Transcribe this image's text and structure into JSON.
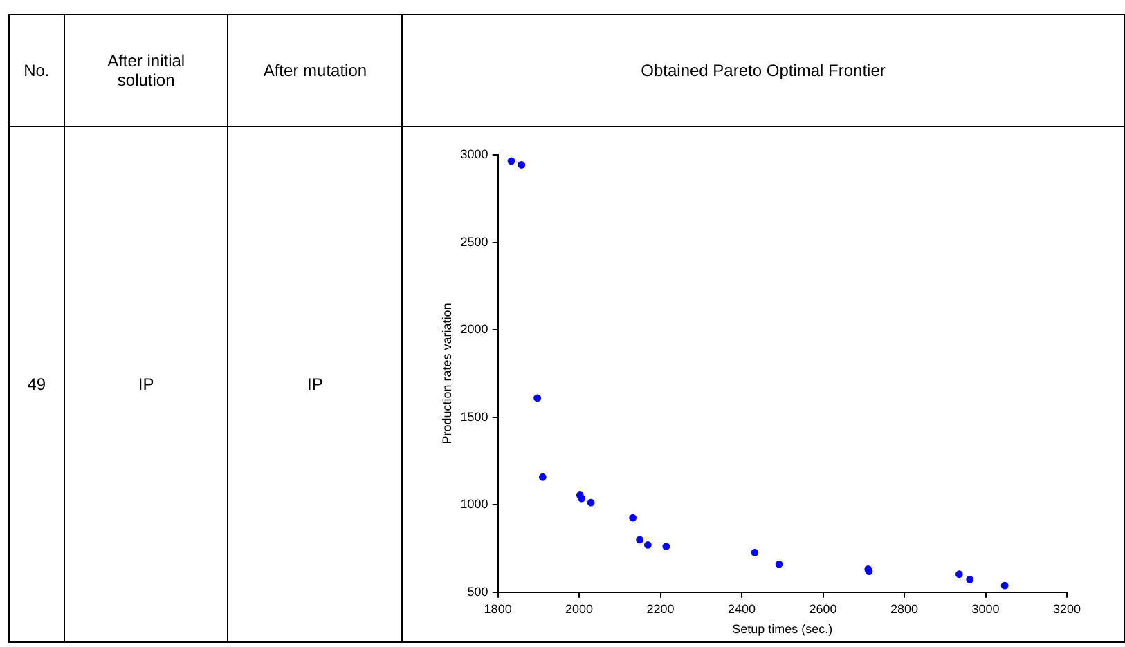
{
  "chart_data": {
    "type": "scatter",
    "xlabel": "Setup times (sec.)",
    "ylabel": "Production rates variation",
    "annotations": [
      "No.",
      "After initial solution",
      "After mutation",
      "Obtained Pareto Optimal Frontier",
      "49",
      "IP",
      "IP"
    ],
    "x": [
      1833,
      1858,
      1897,
      1910,
      2002,
      2006,
      2029,
      2132,
      2149,
      2169,
      2214,
      2432,
      2492,
      2711,
      2713,
      2935,
      2961,
      3047
    ],
    "series": [
      {
        "color": "#0000ff",
        "values": [
          2965,
          2943,
          1610,
          1158,
          1055,
          1036,
          1012,
          925,
          800,
          770,
          762,
          727,
          660,
          632,
          619,
          603,
          573,
          538
        ]
      }
    ],
    "xlim": [
      1800,
      3200
    ],
    "xticks": [
      1800,
      2000,
      2200,
      2400,
      2600,
      2800,
      3000,
      3200
    ],
    "ylim": [
      500,
      3000
    ],
    "yticks": [
      500,
      1000,
      1500,
      2000,
      2500,
      3000
    ],
    "marker": "circle",
    "legend": false
  }
}
